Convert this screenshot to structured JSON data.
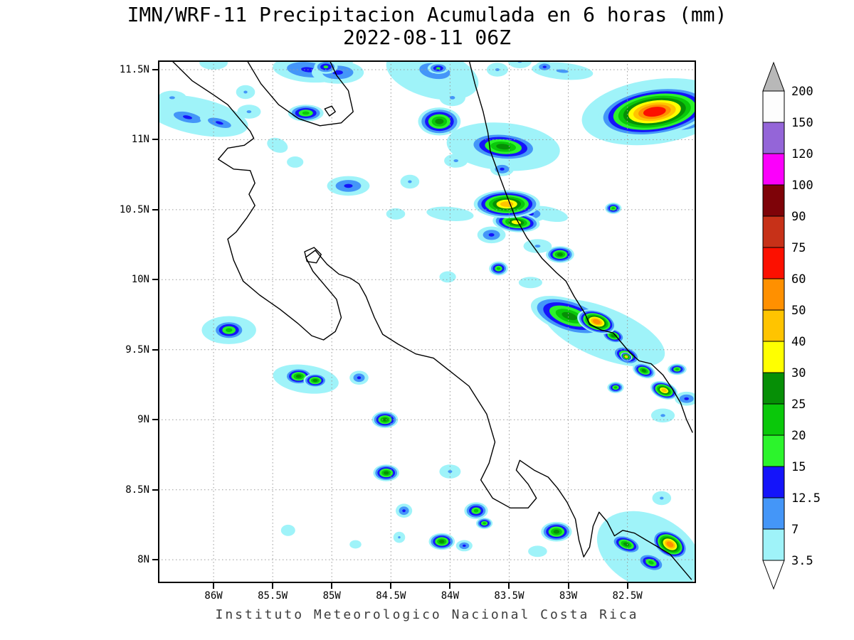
{
  "title": {
    "line1": "IMN/WRF-11 Precipitacion Acumulada en 6 horas (mm)",
    "line2": "2022-08-11 06Z"
  },
  "footer": "Instituto Meteorologico Nacional Costa Rica",
  "axes": {
    "lat_ticks": [
      {
        "label": "11.5N",
        "value": 11.5
      },
      {
        "label": "11N",
        "value": 11.0
      },
      {
        "label": "10.5N",
        "value": 10.5
      },
      {
        "label": "10N",
        "value": 10.0
      },
      {
        "label": "9.5N",
        "value": 9.5
      },
      {
        "label": "9N",
        "value": 9.0
      },
      {
        "label": "8.5N",
        "value": 8.5
      },
      {
        "label": "8N",
        "value": 8.0
      }
    ],
    "lon_ticks": [
      {
        "label": "86W",
        "value": -86.0
      },
      {
        "label": "85.5W",
        "value": -85.5
      },
      {
        "label": "85W",
        "value": -85.0
      },
      {
        "label": "84.5W",
        "value": -84.5
      },
      {
        "label": "84W",
        "value": -84.0
      },
      {
        "label": "83.5W",
        "value": -83.5
      },
      {
        "label": "83W",
        "value": -83.0
      },
      {
        "label": "82.5W",
        "value": -82.5
      }
    ]
  },
  "colorbar": {
    "labels_top_to_bottom": [
      "200",
      "150",
      "120",
      "100",
      "90",
      "75",
      "60",
      "50",
      "40",
      "30",
      "25",
      "20",
      "15",
      "12.5",
      "7",
      "3.5"
    ],
    "above_color": "#b8b8b8",
    "below_color": "#ffffff"
  },
  "chart_data": {
    "type": "heatmap",
    "title": "IMN/WRF-11 Precipitacion Acumulada en 6 horas (mm)",
    "subtitle": "2022-08-11 06Z",
    "units": "mm",
    "region": "Costa Rica",
    "lon_range": [
      -86.47,
      -81.92
    ],
    "lat_range": [
      7.833,
      11.566
    ],
    "grid_step_deg": 0.5,
    "grid_on": true,
    "legend_position": "right",
    "levels": [
      3.5,
      7,
      12.5,
      15,
      20,
      25,
      30,
      40,
      50,
      60,
      75,
      90,
      100,
      120,
      150,
      200
    ],
    "band_colors": [
      "#9ff3f9",
      "#4496f8",
      "#1414fa",
      "#2cf42c",
      "#0ac80a",
      "#068f06",
      "#ffff00",
      "#ffc400",
      "#ff9000",
      "#fc1000",
      "#c73118",
      "#7e0308",
      "#fb00fb",
      "#9465d8",
      "#fdfdfd"
    ],
    "cells_legend": "[lon, lat, rx_deg, ry_deg, rotation_deg, peak_mm] — shaded precipitation maxima; peak_mm is the highest contour level exceeded",
    "cells": [
      [
        -86.15,
        11.17,
        0.45,
        0.13,
        12,
        3.5
      ],
      [
        -86.0,
        11.55,
        0.12,
        0.05,
        0,
        3.5
      ],
      [
        -84.92,
        11.56,
        0.1,
        0.05,
        0,
        3.5
      ],
      [
        -85.46,
        10.96,
        0.09,
        0.05,
        20,
        3.5
      ],
      [
        -85.31,
        10.84,
        0.07,
        0.04,
        0,
        3.5
      ],
      [
        -84.46,
        10.47,
        0.08,
        0.04,
        0,
        3.5
      ],
      [
        -84.0,
        10.47,
        0.2,
        0.05,
        5,
        3.5
      ],
      [
        -83.17,
        10.47,
        0.17,
        0.05,
        12,
        3.5
      ],
      [
        -83.32,
        9.98,
        0.1,
        0.04,
        0,
        3.5
      ],
      [
        -84.02,
        10.02,
        0.07,
        0.04,
        0,
        3.5
      ],
      [
        -82.27,
        11.2,
        0.62,
        0.23,
        -8,
        3.5
      ],
      [
        -82.7,
        9.62,
        0.55,
        0.18,
        22,
        3.5
      ],
      [
        -85.37,
        8.21,
        0.06,
        0.04,
        0,
        3.5
      ],
      [
        -84.8,
        8.11,
        0.05,
        0.03,
        0,
        3.5
      ],
      [
        -83.26,
        8.06,
        0.08,
        0.04,
        0,
        3.5
      ],
      [
        -82.32,
        8.06,
        0.46,
        0.26,
        25,
        3.5
      ],
      [
        -83.55,
        10.95,
        0.48,
        0.17,
        5,
        7
      ],
      [
        -84.15,
        11.47,
        0.4,
        0.17,
        15,
        7
      ],
      [
        -86.35,
        11.3,
        0.12,
        0.05,
        0,
        7
      ],
      [
        -85.7,
        11.2,
        0.1,
        0.05,
        0,
        7
      ],
      [
        -85.73,
        11.34,
        0.08,
        0.05,
        0,
        7
      ],
      [
        -83.95,
        10.85,
        0.1,
        0.05,
        0,
        7
      ],
      [
        -84.34,
        10.7,
        0.08,
        0.05,
        0,
        7
      ],
      [
        -83.26,
        10.24,
        0.12,
        0.05,
        0,
        7
      ],
      [
        -83.41,
        11.56,
        0.1,
        0.05,
        0,
        7
      ],
      [
        -83.6,
        11.5,
        0.09,
        0.05,
        0,
        7
      ],
      [
        -83.98,
        11.3,
        0.11,
        0.06,
        0,
        7
      ],
      [
        -83.05,
        11.49,
        0.26,
        0.06,
        5,
        7
      ],
      [
        -84.0,
        8.63,
        0.09,
        0.05,
        0,
        7
      ],
      [
        -84.43,
        8.16,
        0.05,
        0.04,
        0,
        7
      ],
      [
        -82.21,
        8.44,
        0.08,
        0.05,
        0,
        7
      ],
      [
        -82.2,
        9.03,
        0.1,
        0.05,
        0,
        7
      ],
      [
        -85.22,
        9.29,
        0.28,
        0.1,
        8,
        7
      ],
      [
        -85.87,
        9.64,
        0.23,
        0.1,
        0,
        7
      ],
      [
        -86.22,
        11.16,
        0.2,
        0.06,
        12,
        12.5
      ],
      [
        -85.95,
        11.12,
        0.17,
        0.05,
        15,
        12.5
      ],
      [
        -85.2,
        11.5,
        0.3,
        0.09,
        5,
        12.5
      ],
      [
        -84.95,
        11.48,
        0.22,
        0.08,
        0,
        12.5
      ],
      [
        -85.05,
        11.52,
        0.1,
        0.05,
        0,
        15
      ],
      [
        -85.22,
        11.19,
        0.15,
        0.06,
        0,
        20
      ],
      [
        -84.13,
        11.49,
        0.22,
        0.09,
        10,
        12.5
      ],
      [
        -84.1,
        11.51,
        0.09,
        0.04,
        0,
        15
      ],
      [
        -84.09,
        11.13,
        0.18,
        0.1,
        0,
        25
      ],
      [
        -84.86,
        10.67,
        0.18,
        0.07,
        0,
        12.5
      ],
      [
        -83.55,
        10.95,
        0.3,
        0.1,
        5,
        25
      ],
      [
        -83.56,
        10.79,
        0.1,
        0.05,
        0,
        12.5
      ],
      [
        -83.2,
        11.52,
        0.08,
        0.04,
        0,
        12.5
      ],
      [
        -82.27,
        11.2,
        0.48,
        0.17,
        -8,
        60
      ],
      [
        -82.05,
        11.18,
        0.26,
        0.13,
        0,
        25
      ],
      [
        -82.14,
        11.13,
        0.09,
        0.05,
        0,
        40
      ],
      [
        -83.52,
        10.54,
        0.28,
        0.1,
        0,
        40
      ],
      [
        -83.32,
        10.47,
        0.14,
        0.06,
        0,
        12.5
      ],
      [
        -83.44,
        10.41,
        0.2,
        0.07,
        5,
        30
      ],
      [
        -83.65,
        10.32,
        0.12,
        0.06,
        0,
        12.5
      ],
      [
        -82.62,
        10.51,
        0.07,
        0.04,
        0,
        20
      ],
      [
        -83.07,
        10.18,
        0.12,
        0.06,
        0,
        25
      ],
      [
        -83.59,
        10.08,
        0.08,
        0.05,
        0,
        20
      ],
      [
        -82.99,
        9.74,
        0.34,
        0.12,
        18,
        25
      ],
      [
        -82.76,
        9.7,
        0.17,
        0.08,
        18,
        50
      ],
      [
        -83.14,
        9.8,
        0.12,
        0.06,
        18,
        20
      ],
      [
        -82.62,
        9.6,
        0.1,
        0.05,
        18,
        25
      ],
      [
        -82.51,
        9.46,
        0.12,
        0.06,
        20,
        25
      ],
      [
        -82.51,
        9.45,
        0.05,
        0.03,
        20,
        40
      ],
      [
        -82.36,
        9.35,
        0.1,
        0.05,
        20,
        25
      ],
      [
        -82.19,
        9.21,
        0.12,
        0.06,
        20,
        40
      ],
      [
        -82.08,
        9.36,
        0.08,
        0.04,
        0,
        20
      ],
      [
        -82.6,
        9.23,
        0.07,
        0.04,
        0,
        20
      ],
      [
        -82.0,
        9.15,
        0.1,
        0.05,
        0,
        12.5
      ],
      [
        -85.87,
        9.64,
        0.14,
        0.07,
        0,
        20
      ],
      [
        -85.28,
        9.31,
        0.12,
        0.06,
        0,
        25
      ],
      [
        -85.14,
        9.28,
        0.1,
        0.05,
        0,
        25
      ],
      [
        -84.77,
        9.3,
        0.08,
        0.05,
        0,
        12.5
      ],
      [
        -84.55,
        9.0,
        0.11,
        0.06,
        0,
        25
      ],
      [
        -84.54,
        8.62,
        0.11,
        0.06,
        0,
        25
      ],
      [
        -84.39,
        8.35,
        0.07,
        0.05,
        0,
        12.5
      ],
      [
        -83.78,
        8.35,
        0.1,
        0.06,
        0,
        20
      ],
      [
        -83.71,
        8.26,
        0.07,
        0.04,
        0,
        20
      ],
      [
        -84.07,
        8.13,
        0.11,
        0.06,
        0,
        25
      ],
      [
        -83.88,
        8.1,
        0.07,
        0.04,
        0,
        12.5
      ],
      [
        -83.1,
        8.2,
        0.13,
        0.07,
        0,
        25
      ],
      [
        -82.51,
        8.11,
        0.13,
        0.06,
        20,
        25
      ],
      [
        -82.14,
        8.11,
        0.16,
        0.09,
        30,
        50
      ],
      [
        -82.3,
        7.98,
        0.12,
        0.06,
        20,
        20
      ]
    ],
    "coastlines": [
      {
        "name": "pacific-coast",
        "points": [
          [
            -86.36,
            11.57
          ],
          [
            -86.18,
            11.42
          ],
          [
            -86.0,
            11.32
          ],
          [
            -85.88,
            11.25
          ],
          [
            -85.78,
            11.15
          ],
          [
            -85.69,
            11.06
          ],
          [
            -85.66,
            11.01
          ],
          [
            -85.74,
            10.96
          ],
          [
            -85.88,
            10.94
          ],
          [
            -85.96,
            10.86
          ],
          [
            -85.83,
            10.79
          ],
          [
            -85.69,
            10.78
          ],
          [
            -85.65,
            10.69
          ],
          [
            -85.7,
            10.61
          ],
          [
            -85.65,
            10.53
          ],
          [
            -85.72,
            10.44
          ],
          [
            -85.81,
            10.34
          ],
          [
            -85.88,
            10.29
          ],
          [
            -85.83,
            10.14
          ],
          [
            -85.75,
            9.99
          ],
          [
            -85.61,
            9.89
          ],
          [
            -85.44,
            9.79
          ],
          [
            -85.29,
            9.69
          ],
          [
            -85.17,
            9.6
          ],
          [
            -85.07,
            9.57
          ],
          [
            -84.97,
            9.63
          ],
          [
            -84.92,
            9.73
          ],
          [
            -84.96,
            9.86
          ],
          [
            -85.06,
            9.96
          ],
          [
            -85.16,
            10.06
          ],
          [
            -85.22,
            10.16
          ],
          [
            -85.14,
            10.21
          ],
          [
            -85.04,
            10.11
          ],
          [
            -84.94,
            10.04
          ],
          [
            -84.84,
            10.01
          ],
          [
            -84.77,
            9.97
          ],
          [
            -84.71,
            9.88
          ],
          [
            -84.64,
            9.73
          ],
          [
            -84.57,
            9.61
          ],
          [
            -84.44,
            9.54
          ],
          [
            -84.29,
            9.47
          ],
          [
            -84.14,
            9.44
          ],
          [
            -83.99,
            9.34
          ],
          [
            -83.84,
            9.24
          ],
          [
            -83.69,
            9.04
          ],
          [
            -83.62,
            8.84
          ],
          [
            -83.67,
            8.69
          ],
          [
            -83.74,
            8.57
          ],
          [
            -83.64,
            8.44
          ],
          [
            -83.49,
            8.37
          ],
          [
            -83.34,
            8.37
          ],
          [
            -83.27,
            8.44
          ],
          [
            -83.34,
            8.54
          ],
          [
            -83.44,
            8.64
          ],
          [
            -83.41,
            8.71
          ],
          [
            -83.29,
            8.64
          ],
          [
            -83.17,
            8.59
          ],
          [
            -83.09,
            8.51
          ],
          [
            -83.01,
            8.41
          ],
          [
            -82.94,
            8.29
          ],
          [
            -82.91,
            8.14
          ],
          [
            -82.87,
            8.02
          ],
          [
            -82.82,
            8.09
          ],
          [
            -82.79,
            8.24
          ],
          [
            -82.74,
            8.34
          ],
          [
            -82.67,
            8.27
          ],
          [
            -82.61,
            8.17
          ],
          [
            -82.54,
            8.21
          ],
          [
            -82.44,
            8.19
          ],
          [
            -82.34,
            8.14
          ],
          [
            -82.24,
            8.09
          ],
          [
            -82.14,
            8.04
          ],
          [
            -82.04,
            7.94
          ],
          [
            -81.96,
            7.86
          ]
        ]
      },
      {
        "name": "caribbean-coast",
        "points": [
          [
            -83.84,
            11.57
          ],
          [
            -83.79,
            11.4
          ],
          [
            -83.72,
            11.2
          ],
          [
            -83.68,
            11.05
          ],
          [
            -83.66,
            10.92
          ],
          [
            -83.6,
            10.78
          ],
          [
            -83.52,
            10.6
          ],
          [
            -83.45,
            10.45
          ],
          [
            -83.35,
            10.3
          ],
          [
            -83.22,
            10.15
          ],
          [
            -83.1,
            10.05
          ],
          [
            -83.02,
            9.99
          ],
          [
            -82.95,
            9.88
          ],
          [
            -82.86,
            9.76
          ],
          [
            -82.82,
            9.68
          ],
          [
            -82.72,
            9.64
          ],
          [
            -82.62,
            9.62
          ],
          [
            -82.56,
            9.56
          ],
          [
            -82.48,
            9.48
          ],
          [
            -82.4,
            9.42
          ],
          [
            -82.3,
            9.4
          ],
          [
            -82.2,
            9.32
          ],
          [
            -82.12,
            9.22
          ],
          [
            -82.05,
            9.12
          ],
          [
            -82.0,
            9.0
          ],
          [
            -81.95,
            8.91
          ]
        ]
      },
      {
        "name": "lake-nicaragua",
        "points": [
          [
            -85.72,
            11.57
          ],
          [
            -85.6,
            11.4
          ],
          [
            -85.45,
            11.25
          ],
          [
            -85.28,
            11.15
          ],
          [
            -85.1,
            11.1
          ],
          [
            -84.92,
            11.12
          ],
          [
            -84.82,
            11.2
          ],
          [
            -84.86,
            11.35
          ],
          [
            -84.96,
            11.46
          ],
          [
            -85.02,
            11.57
          ]
        ]
      },
      {
        "name": "lake-arenal",
        "points": [
          [
            -85.23,
            10.2
          ],
          [
            -85.15,
            10.23
          ],
          [
            -85.09,
            10.18
          ],
          [
            -85.13,
            10.12
          ],
          [
            -85.21,
            10.13
          ],
          [
            -85.23,
            10.2
          ]
        ]
      },
      {
        "name": "lake-islets",
        "points": [
          [
            -85.06,
            11.22
          ],
          [
            -85.0,
            11.24
          ],
          [
            -84.97,
            11.2
          ],
          [
            -85.02,
            11.17
          ],
          [
            -85.06,
            11.22
          ]
        ]
      }
    ]
  }
}
